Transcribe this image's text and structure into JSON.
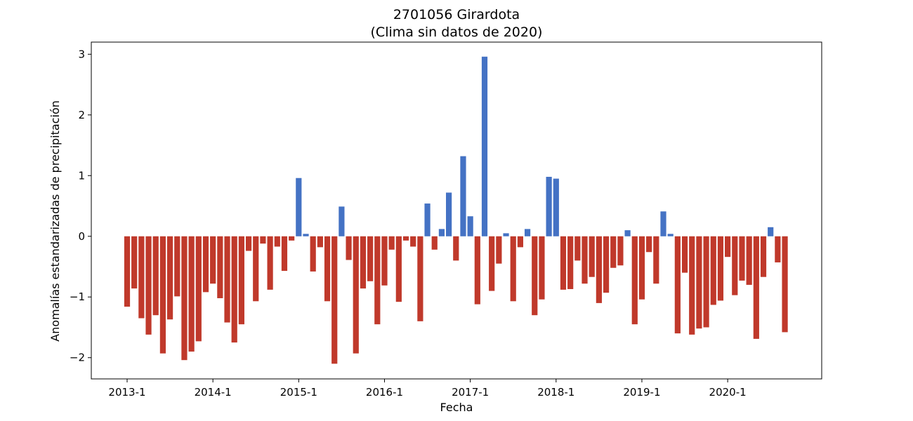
{
  "chart_data": {
    "type": "bar",
    "title_line1": "2701056 Girardota",
    "title_line2": "(Clima sin datos de 2020)",
    "xlabel": "Fecha",
    "ylabel": "Anomalías estandarizadas de precipitación",
    "ylim": [
      -2.35,
      3.2
    ],
    "yticks": [
      -2,
      -1,
      0,
      1,
      2,
      3
    ],
    "ytick_labels": [
      "−2",
      "−1",
      "0",
      "1",
      "2",
      "3"
    ],
    "start_year": 2013,
    "start_month": 1,
    "xticks": [
      {
        "label": "2013-1",
        "index": 0
      },
      {
        "label": "2014-1",
        "index": 12
      },
      {
        "label": "2015-1",
        "index": 24
      },
      {
        "label": "2016-1",
        "index": 36
      },
      {
        "label": "2017-1",
        "index": 48
      },
      {
        "label": "2018-1",
        "index": 60
      },
      {
        "label": "2019-1",
        "index": 72
      },
      {
        "label": "2020-1",
        "index": 84
      }
    ],
    "colors": {
      "positive": "#4472c4",
      "negative": "#c0392b"
    },
    "values": [
      -1.16,
      -0.86,
      -1.35,
      -1.62,
      -1.3,
      -1.93,
      -1.37,
      -0.99,
      -2.04,
      -1.9,
      -1.73,
      -0.92,
      -0.78,
      -1.02,
      -1.42,
      -1.75,
      -1.45,
      -0.24,
      -1.07,
      -0.12,
      -0.88,
      -0.17,
      -0.57,
      -0.07,
      0.96,
      0.04,
      -0.58,
      -0.18,
      -1.07,
      -2.1,
      0.49,
      -0.39,
      -1.93,
      -0.86,
      -0.74,
      -1.45,
      -0.81,
      -0.22,
      -1.08,
      -0.07,
      -0.17,
      -1.4,
      0.54,
      -0.22,
      0.12,
      0.72,
      -0.4,
      1.32,
      0.33,
      -1.12,
      2.96,
      -0.9,
      -0.45,
      0.05,
      -1.07,
      -0.18,
      0.12,
      -1.3,
      -1.04,
      0.98,
      0.95,
      -0.88,
      -0.87,
      -0.4,
      -0.78,
      -0.67,
      -1.1,
      -0.93,
      -0.52,
      -0.48,
      0.1,
      -1.45,
      -1.04,
      -0.26,
      -0.78,
      0.41,
      0.04,
      -1.6,
      -0.6,
      -1.62,
      -1.52,
      -1.5,
      -1.13,
      -1.06,
      -0.34,
      -0.97,
      -0.73,
      -0.8,
      -1.69,
      -0.67,
      0.15,
      -0.43,
      -1.58
    ]
  }
}
